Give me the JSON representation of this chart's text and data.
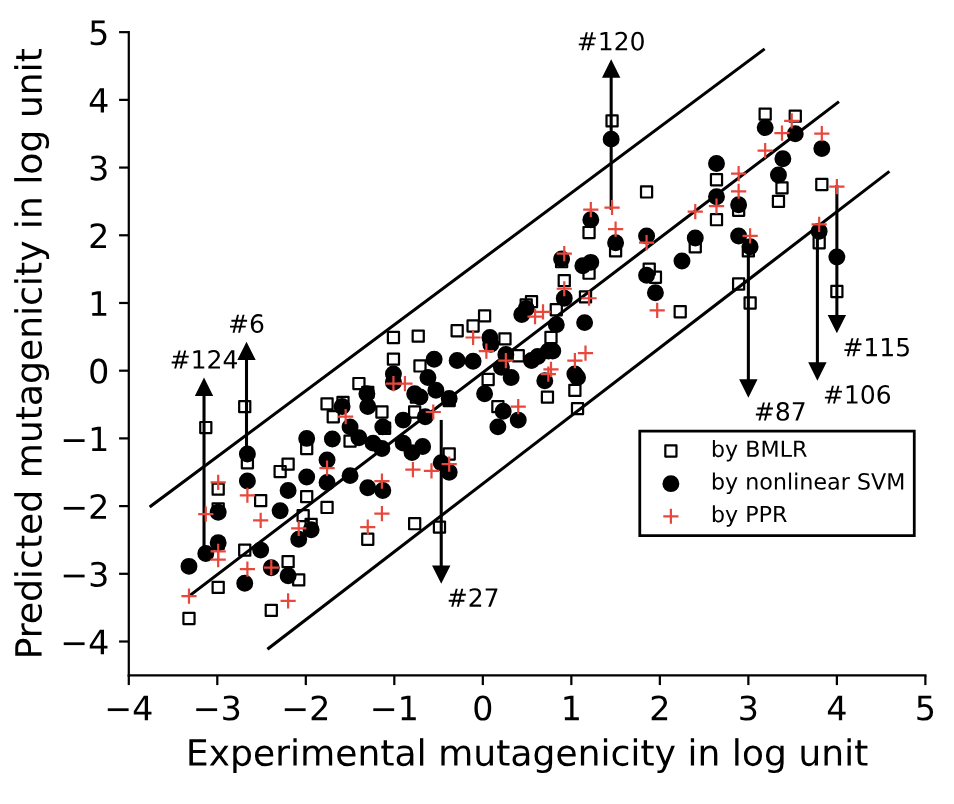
{
  "chart_data": {
    "type": "scatter",
    "xlabel": "Experimental mutagenicity in log unit",
    "ylabel": "Predicted mutagenicity in log unit",
    "xlim": [
      -4,
      5
    ],
    "ylim": [
      -4.5,
      5
    ],
    "xticks": [
      -4,
      -3,
      -2,
      -1,
      0,
      1,
      2,
      3,
      4,
      5
    ],
    "yticks": [
      -4,
      -3,
      -2,
      -1,
      0,
      1,
      2,
      3,
      4,
      5
    ],
    "grid": false,
    "legend": "bottom right",
    "series": [
      {
        "name": "by BMLR",
        "marker": "square",
        "color": "#000000",
        "x": [
          -3.32,
          -3.13,
          -2.99,
          -2.99,
          -2.99,
          -2.99,
          -2.69,
          -2.66,
          -2.69,
          -2.51,
          -2.39,
          -2.29,
          -2.2,
          -2.2,
          -2.08,
          -1.99,
          -1.99,
          -2.03,
          -1.94,
          -1.76,
          -1.76,
          -1.69,
          -1.58,
          -1.5,
          -1.4,
          -1.3,
          -1.3,
          -1.14,
          -1.11,
          -1.01,
          -1.01,
          -0.73,
          -0.75,
          -0.77,
          -0.77,
          -0.49,
          -0.71,
          -0.38,
          -0.38,
          -0.29,
          -0.11,
          0.02,
          0.06,
          0.17,
          0.25,
          0.49,
          0.55,
          0.4,
          0.73,
          0.77,
          0.83,
          0.92,
          0.89,
          1.04,
          1.07,
          1.16,
          1.2,
          1.2,
          1.46,
          1.5,
          1.85,
          1.88,
          1.95,
          2.23,
          2.4,
          2.64,
          2.64,
          2.89,
          2.89,
          3.0,
          3.02,
          3.19,
          3.34,
          3.38,
          3.53,
          3.8,
          3.83,
          4.0
        ],
        "values": [
          -3.66,
          -0.84,
          -1.75,
          -2.04,
          -2.55,
          -3.2,
          -0.53,
          -1.36,
          -2.65,
          -1.92,
          -3.54,
          -1.49,
          -1.38,
          -2.82,
          -3.09,
          -1.15,
          -1.86,
          -2.14,
          -2.27,
          -0.49,
          -2.02,
          -0.68,
          -0.47,
          -1.04,
          -0.19,
          -0.32,
          -2.49,
          -0.61,
          -0.85,
          0.49,
          0.17,
          0.51,
          -0.39,
          -0.61,
          -2.26,
          -2.31,
          0.07,
          -1.23,
          -0.44,
          0.59,
          0.66,
          0.81,
          -0.13,
          -0.53,
          0.47,
          0.97,
          1.02,
          0.22,
          -0.39,
          0.49,
          0.9,
          1.33,
          1.61,
          -0.29,
          -0.56,
          1.09,
          1.44,
          2.04,
          3.69,
          1.77,
          2.64,
          1.5,
          1.38,
          0.87,
          1.83,
          2.82,
          2.23,
          2.37,
          1.28,
          1.77,
          1.0,
          3.79,
          2.5,
          2.7,
          3.76,
          1.89,
          2.75,
          1.17
        ]
      },
      {
        "name": "by nonlinear SVM",
        "marker": "circle",
        "color": "#000000",
        "x": [
          -3.32,
          -3.13,
          -2.99,
          -2.99,
          -2.69,
          -2.66,
          -2.66,
          -2.51,
          -2.39,
          -2.29,
          -2.2,
          -2.2,
          -2.08,
          -1.99,
          -1.99,
          -1.94,
          -1.76,
          -1.76,
          -1.7,
          -1.59,
          -1.5,
          -1.5,
          -1.4,
          -1.31,
          -1.3,
          -1.3,
          -1.24,
          -1.14,
          -1.13,
          -1.13,
          -1.01,
          -1.01,
          -0.9,
          -0.9,
          -0.8,
          -0.77,
          -0.71,
          -0.68,
          -0.65,
          -0.62,
          -0.55,
          -0.53,
          -0.47,
          -0.38,
          -0.38,
          -0.29,
          -0.11,
          0.02,
          0.08,
          0.09,
          0.17,
          0.23,
          0.21,
          0.26,
          0.32,
          0.4,
          0.44,
          0.49,
          0.55,
          0.62,
          0.7,
          0.74,
          0.79,
          0.83,
          0.89,
          0.92,
          1.04,
          1.07,
          1.15,
          1.13,
          1.22,
          1.22,
          1.45,
          1.5,
          1.85,
          1.85,
          1.95,
          2.25,
          2.4,
          2.64,
          2.64,
          2.89,
          2.89,
          3.02,
          3.19,
          3.34,
          3.39,
          3.53,
          3.83,
          3.8,
          4.0
        ],
        "values": [
          -2.89,
          -2.7,
          -2.09,
          -2.54,
          -3.14,
          -1.63,
          -1.23,
          -2.65,
          -2.91,
          -2.07,
          -1.77,
          -3.03,
          -2.49,
          -1.0,
          -1.57,
          -2.35,
          -1.32,
          -1.65,
          -1.01,
          -0.53,
          -0.83,
          -1.55,
          -0.99,
          -0.34,
          -0.53,
          -1.73,
          -1.07,
          -1.15,
          -0.83,
          -1.77,
          -0.05,
          -0.17,
          -0.73,
          -1.07,
          -1.21,
          -0.34,
          -0.39,
          -1.12,
          -0.68,
          -0.1,
          0.17,
          -0.29,
          -1.36,
          -0.41,
          -1.5,
          0.15,
          0.14,
          -0.34,
          0.49,
          0.39,
          -0.83,
          -0.6,
          0.05,
          0.24,
          -0.1,
          -0.73,
          0.83,
          0.92,
          0.15,
          0.21,
          -0.15,
          0.29,
          0.29,
          0.68,
          1.65,
          1.07,
          -0.05,
          -0.1,
          0.71,
          1.55,
          1.6,
          2.23,
          3.42,
          1.89,
          1.99,
          1.41,
          1.15,
          1.62,
          1.96,
          3.06,
          2.57,
          2.45,
          1.99,
          1.83,
          3.59,
          2.89,
          3.13,
          3.5,
          3.28,
          2.06,
          1.68
        ]
      },
      {
        "name": "by PPR",
        "marker": "cross",
        "color": "#e8473c",
        "x": [
          -3.32,
          -3.13,
          -2.99,
          -2.99,
          -2.99,
          -2.66,
          -2.66,
          -2.51,
          -2.39,
          -2.2,
          -2.08,
          -1.76,
          -1.55,
          -1.3,
          -1.14,
          -1.14,
          -1.01,
          -0.88,
          -0.79,
          -0.58,
          -0.56,
          -0.38,
          -0.11,
          0.04,
          0.26,
          0.4,
          0.59,
          0.68,
          0.74,
          0.77,
          0.92,
          0.92,
          1.04,
          1.16,
          1.2,
          1.22,
          1.46,
          1.5,
          1.85,
          1.97,
          2.4,
          2.64,
          2.89,
          2.89,
          3.02,
          3.19,
          3.38,
          3.49,
          3.83,
          4.0,
          3.8
        ],
        "values": [
          -3.33,
          -2.12,
          -1.65,
          -2.67,
          -2.79,
          -1.84,
          -2.93,
          -2.21,
          -2.91,
          -3.4,
          -2.33,
          -1.44,
          -0.68,
          -2.31,
          -2.11,
          -1.63,
          -0.19,
          -0.19,
          -1.46,
          -1.48,
          -0.61,
          -1.38,
          0.49,
          0.29,
          0.15,
          -0.53,
          0.8,
          0.87,
          -0.05,
          0.02,
          1.21,
          1.73,
          0.15,
          0.26,
          1.07,
          2.38,
          2.41,
          2.09,
          1.89,
          0.89,
          2.35,
          2.43,
          2.91,
          2.65,
          1.99,
          3.25,
          3.51,
          3.69,
          3.5,
          2.72,
          2.16
        ]
      },
      {
        "type": "line",
        "color": "#000000",
        "x": [
          -3.75,
          3.17
        ],
        "values": [
          -2.0,
          4.74
        ]
      },
      {
        "type": "line",
        "color": "#000000",
        "x": [
          -3.32,
          4.01
        ],
        "values": [
          -3.33,
          3.96
        ]
      },
      {
        "type": "line",
        "color": "#000000",
        "x": [
          -2.42,
          4.58
        ],
        "values": [
          -4.1,
          2.93
        ]
      },
      {
        "type": "line",
        "marker": "triangle",
        "color": "#000000",
        "x": [
          1.45,
          1.45
        ],
        "values": [
          2.4,
          4.45
        ]
      },
      {
        "type": "line",
        "marker": "triangle",
        "color": "#000000",
        "x": [
          -3.15,
          -3.15
        ],
        "values": [
          -2.7,
          -0.25
        ]
      },
      {
        "type": "line",
        "marker": "triangle",
        "color": "#000000",
        "x": [
          -2.67,
          -2.67
        ],
        "values": [
          -1.3,
          0.28
        ]
      },
      {
        "type": "line",
        "marker": "triangle",
        "color": "#000000",
        "x": [
          -0.47,
          -0.47
        ],
        "values": [
          -0.75,
          -3.0
        ]
      },
      {
        "type": "line",
        "marker": "triangle",
        "color": "#000000",
        "x": [
          3.0,
          3.0
        ],
        "values": [
          1.8,
          -0.25
        ]
      },
      {
        "type": "line",
        "marker": "triangle",
        "color": "#000000",
        "x": [
          3.78,
          3.78
        ],
        "values": [
          2.1,
          0.0
        ]
      },
      {
        "type": "line",
        "marker": "triangle",
        "color": "#000000",
        "x": [
          4.0,
          4.0
        ],
        "values": [
          2.72,
          0.7
        ]
      }
    ],
    "annotations": [
      {
        "text": "#120",
        "x": 1.45,
        "y": 4.45
      },
      {
        "text": "#124",
        "x": -3.15,
        "y": -0.25
      },
      {
        "text": "#6",
        "x": -2.67,
        "y": 0.28
      },
      {
        "text": "#27",
        "x": -0.47,
        "y": -3.0
      },
      {
        "text": "#87",
        "x": 3.0,
        "y": -0.25
      },
      {
        "text": "#106",
        "x": 3.78,
        "y": 0.0
      },
      {
        "text": "#115",
        "x": 4.0,
        "y": 0.7
      }
    ]
  }
}
